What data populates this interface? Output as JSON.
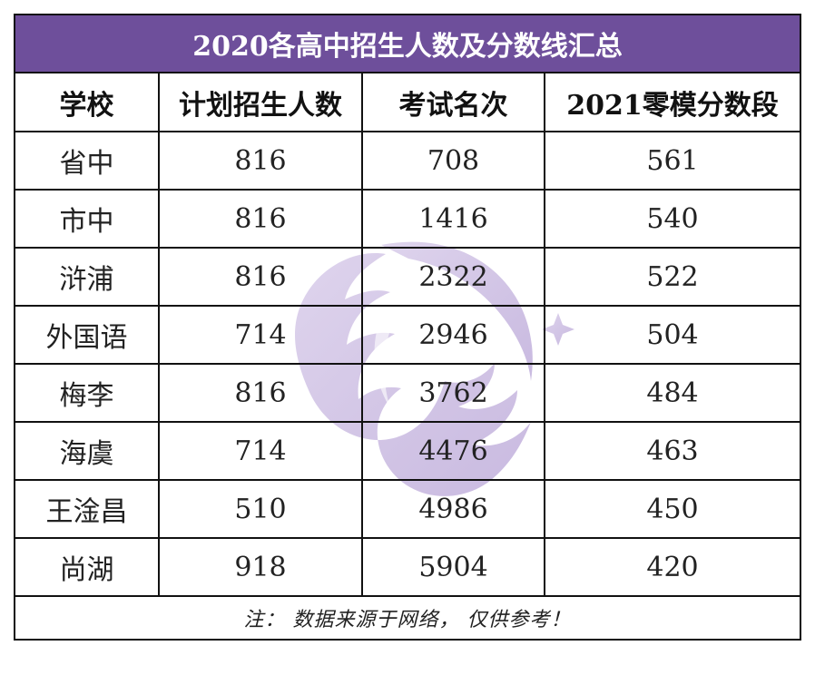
{
  "title": "2020各高中招生人数及分数线汇总",
  "columns": [
    "学校",
    "计划招生人数",
    "考试名次",
    "2021零模分数段"
  ],
  "rows": [
    [
      "省中",
      "816",
      "708",
      "561"
    ],
    [
      "市中",
      "816",
      "1416",
      "540"
    ],
    [
      "浒浦",
      "816",
      "2322",
      "522"
    ],
    [
      "外国语",
      "714",
      "2946",
      "504"
    ],
    [
      "梅李",
      "816",
      "3762",
      "484"
    ],
    [
      "海虞",
      "714",
      "4476",
      "463"
    ],
    [
      "王淦昌",
      "510",
      "4986",
      "450"
    ],
    [
      "尚湖",
      "918",
      "5904",
      "420"
    ]
  ],
  "note": "注： 数据来源于网络， 仅供参考！",
  "colors": {
    "title_bg": "#6e4f9b",
    "title_text": "#ffffff",
    "watermark": "#c9b8e0"
  },
  "watermark_icon": "flame-crescent-logo"
}
